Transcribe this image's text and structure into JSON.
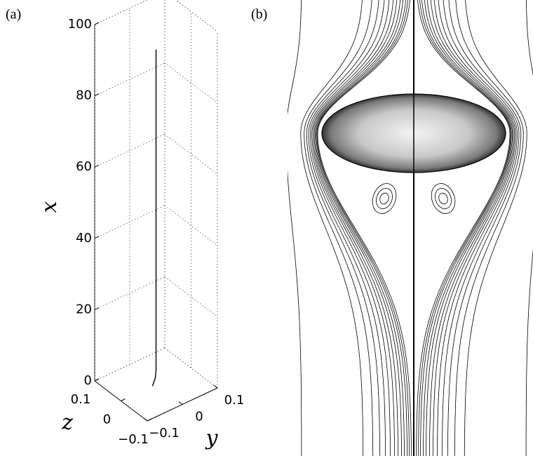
{
  "chart_data": [
    {
      "type": "line3d",
      "panel_label": "(a)",
      "x_label": "x",
      "y_label": "y",
      "z_label": "z",
      "xlim": [
        0,
        100
      ],
      "xticks": [
        0,
        20,
        40,
        60,
        80,
        100
      ],
      "ylim": [
        -0.1,
        0.1
      ],
      "yticks": [
        {
          "value": -0.1,
          "label": "−0.1"
        },
        0,
        0.1
      ],
      "zlim": [
        -0.1,
        0.1
      ],
      "zticks": [
        {
          "value": -0.1,
          "label": "−0.1"
        },
        0,
        0.1
      ],
      "grid": true,
      "series": [
        {
          "color": "#000000",
          "x": [
            0,
            1,
            2,
            4,
            10,
            30,
            60,
            94
          ],
          "y": [
            -0.01,
            -0.006,
            -0.002,
            0,
            0,
            0,
            0,
            0
          ],
          "z": [
            0,
            0,
            0,
            0,
            0,
            0,
            0,
            0
          ]
        }
      ]
    },
    {
      "type": "streamlines",
      "panel_label": "(b)"
    }
  ]
}
